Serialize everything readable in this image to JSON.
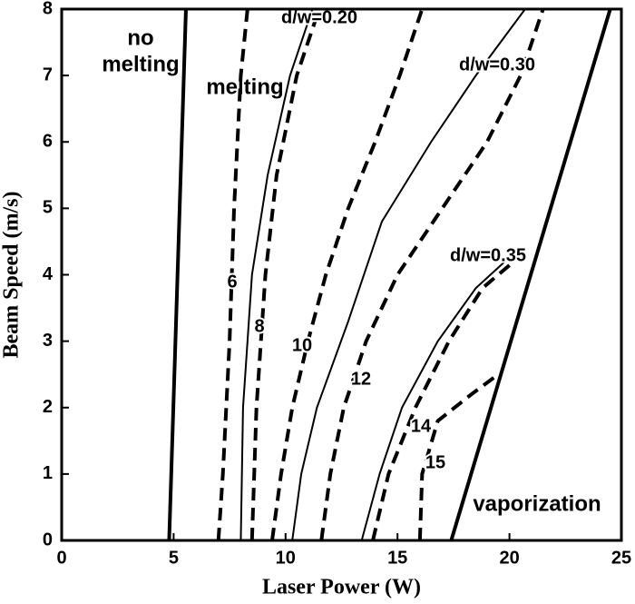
{
  "chart_data": {
    "type": "line",
    "x_label": "Laser Power (W)",
    "y_label": "Beam Speed (m/s)",
    "xlim": [
      0,
      25
    ],
    "xticks": [
      0,
      5,
      10,
      15,
      20,
      25
    ],
    "ylim": [
      0,
      8
    ],
    "yticks": [
      0,
      1,
      2,
      3,
      4,
      5,
      6,
      7,
      8
    ],
    "annotations": [
      "no melting",
      "melting",
      "vaporization"
    ],
    "series": [
      {
        "color": "#000000",
        "linestyle": "solid",
        "linewidth": 4,
        "x": [
          4.8,
          5.55
        ],
        "values": [
          0,
          8
        ]
      },
      {
        "color": "#000000",
        "linestyle": "solid",
        "linewidth": 4,
        "x": [
          17.4,
          24.5
        ],
        "values": [
          0,
          8
        ]
      },
      {
        "name": "6",
        "color": "#000000",
        "linestyle": "dashed",
        "linewidth": 4,
        "x": [
          7.0,
          7.2,
          7.35,
          7.5,
          7.6,
          7.7,
          7.85,
          8.0,
          8.3
        ],
        "values": [
          0,
          1,
          2,
          3,
          4,
          5,
          6,
          7,
          8
        ]
      },
      {
        "name": "d/w=0.20",
        "color": "#000000",
        "linestyle": "solid",
        "linewidth": 2,
        "x": [
          8.0,
          8.1,
          8.5,
          9.2,
          10.2,
          11.2
        ],
        "values": [
          0,
          2,
          4,
          5.5,
          7,
          8
        ]
      },
      {
        "name": "8",
        "color": "#000000",
        "linestyle": "dashed",
        "linewidth": 4,
        "x": [
          8.5,
          8.7,
          9.1,
          9.6,
          10.5,
          11.5
        ],
        "values": [
          0,
          2,
          4,
          5.5,
          7,
          8
        ]
      },
      {
        "name": "10",
        "color": "#000000",
        "linestyle": "dashed",
        "linewidth": 4,
        "x": [
          9.4,
          9.8,
          10.3,
          11.0,
          11.8,
          12.8,
          14.0,
          15.1,
          16.1
        ],
        "values": [
          0,
          1,
          2,
          3,
          4,
          5,
          6,
          7,
          8
        ]
      },
      {
        "name": "d/w=0.30",
        "color": "#000000",
        "linestyle": "solid",
        "linewidth": 2,
        "x": [
          10.3,
          10.7,
          11.4,
          12.8,
          14.3,
          16.5,
          18.5,
          20.7
        ],
        "values": [
          0,
          1,
          2,
          3.3,
          4.8,
          6,
          7,
          8
        ]
      },
      {
        "name": "12",
        "color": "#000000",
        "linestyle": "dashed",
        "linewidth": 4,
        "x": [
          11.6,
          12.0,
          12.6,
          13.6,
          15.0,
          17.0,
          19.0,
          20.5,
          21.5
        ],
        "values": [
          0,
          1,
          2,
          3,
          4,
          5,
          6,
          7,
          8
        ]
      },
      {
        "name": "d/w=0.35",
        "color": "#000000",
        "linestyle": "solid",
        "linewidth": 2,
        "x": [
          13.4,
          14.2,
          15.2,
          16.8,
          18.5,
          19.8
        ],
        "values": [
          0,
          1,
          2,
          3,
          3.8,
          4.2
        ]
      },
      {
        "name": "14",
        "color": "#000000",
        "linestyle": "dashed",
        "linewidth": 4,
        "x": [
          13.9,
          14.6,
          15.8,
          17.3,
          18.8,
          20.2
        ],
        "values": [
          0,
          1,
          2,
          3,
          3.8,
          4.2
        ]
      },
      {
        "name": "15",
        "color": "#000000",
        "linestyle": "dashed",
        "linewidth": 4,
        "x": [
          16.0,
          16.1,
          16.8,
          18.3,
          19.5
        ],
        "values": [
          0,
          1,
          1.8,
          2.2,
          2.5
        ]
      }
    ]
  }
}
